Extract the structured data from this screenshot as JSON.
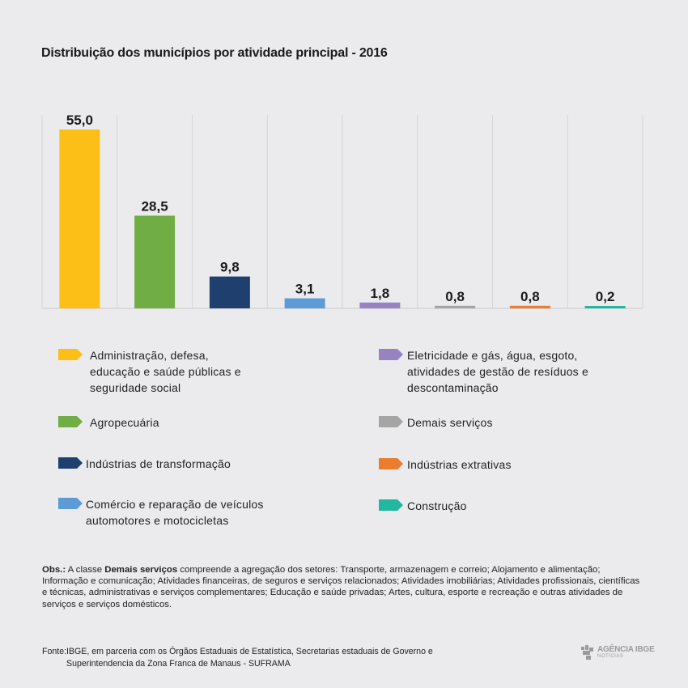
{
  "title": "Distribuição dos municípios por atividade principal - 2016",
  "chart_data": {
    "type": "bar",
    "title": "Distribuição dos municípios por atividade principal - 2016",
    "categories": [
      "Administração, defesa, educação e saúde públicas e seguridade social",
      "Agropecuária",
      "Indústrias de transformação",
      "Comércio e reparação de veículos automotores e motocicletas",
      "Eletricidade e gás, água, esgoto, atividades de gestão de resíduos e descontaminação",
      "Demais serviços",
      "Indústrias extrativas",
      "Construção"
    ],
    "values": [
      55.0,
      28.5,
      9.8,
      3.1,
      1.8,
      0.8,
      0.8,
      0.2
    ],
    "value_labels": [
      "55,0",
      "28,5",
      "9,8",
      "3,1",
      "1,8",
      "0,8",
      "0,8",
      "0,2"
    ],
    "colors": [
      "#fcbf17",
      "#71ad45",
      "#1f3f6f",
      "#5c9bd6",
      "#9683c0",
      "#a5a5a5",
      "#ec7c30",
      "#22b7a1"
    ],
    "ylim": [
      0,
      55
    ],
    "grid": "vertical",
    "legend_position": "bottom"
  },
  "legend": [
    {
      "lines": [
        "Administração, defesa,",
        "educação e saúde públicas e",
        "seguridade social"
      ],
      "color": "#fcbf17"
    },
    {
      "lines": [
        "Agropecuária"
      ],
      "color": "#71ad45"
    },
    {
      "lines": [
        "Indústrias de transformação"
      ],
      "color": "#1f3f6f"
    },
    {
      "lines": [
        "Comércio e reparação de veículos",
        "automotores e motocicletas"
      ],
      "color": "#5c9bd6"
    },
    {
      "lines": [
        "Eletricidade e gás, água, esgoto,",
        "atividades de gestão de resíduos e",
        "descontaminação"
      ],
      "color": "#9683c0"
    },
    {
      "lines": [
        "Demais serviços"
      ],
      "color": "#a5a5a5"
    },
    {
      "lines": [
        "Indústrias extrativas"
      ],
      "color": "#ec7c30"
    },
    {
      "lines": [
        "Construção"
      ],
      "color": "#22b7a1"
    }
  ],
  "obs": {
    "label": "Obs.:",
    "pre": " A classe ",
    "bold": "Demais serviços",
    "text": " compreende a agregação dos setores:  Transporte, armazenagem e correio;  Alojamento e alimentação; Informação e comunicação;   Atividades financeiras, de seguros e serviços relacionados;  Atividades imobiliárias;  Atividades profissionais, científicas e técnicas, administrativas e serviços complementares; Educação e saúde privadas;  Artes, cultura, esporte e recreação e outras atividades de serviços e serviços domésticos."
  },
  "source": {
    "label": "Fonte:",
    "line1": "IBGE, em parceria com os Órgãos Estaduais de Estatística, Secretarias estaduais de Governo e",
    "line2": "Superintendencia da Zona Franca de Manaus - SUFRAMA"
  },
  "logo": {
    "line1": "AGÊNCIA IBGE",
    "line2": "NOTÍCIAS"
  }
}
